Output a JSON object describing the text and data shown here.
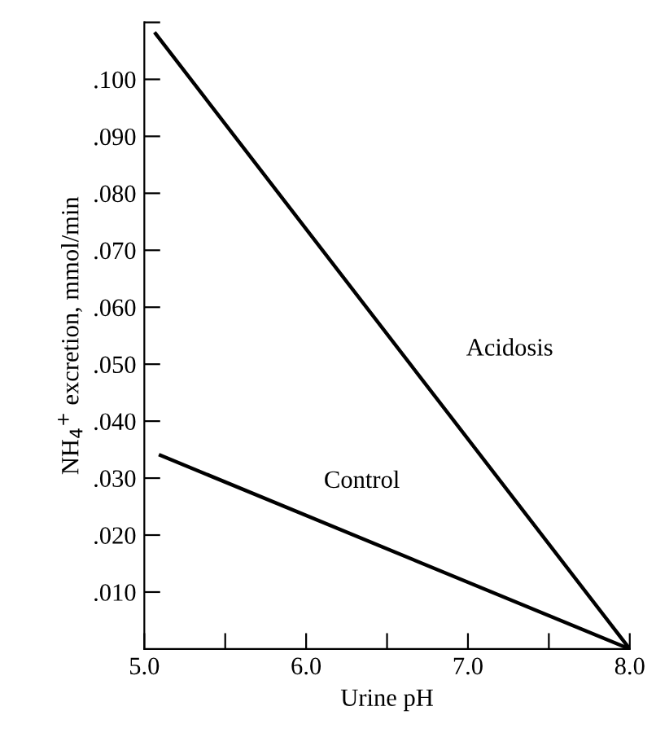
{
  "chart_data": {
    "type": "line",
    "xlabel": "Urine pH",
    "ylabel": "NH$_{4}$$^{+}$ excretion, mmol/min",
    "series": [
      {
        "name": "Acidosis",
        "color": "#000000",
        "x": [
          5.07,
          8.0
        ],
        "values": [
          0.108,
          0
        ]
      },
      {
        "name": "Control",
        "color": "#000000",
        "x": [
          5.1,
          8.0
        ],
        "values": [
          0.034,
          0
        ]
      }
    ],
    "xlim": [
      5.0,
      8.0
    ],
    "ylim": [
      0,
      0.11
    ],
    "xticks": [
      {
        "value": 5.0,
        "label": "5.0"
      },
      {
        "value": 5.5,
        "label": null
      },
      {
        "value": 6.0,
        "label": "6.0"
      },
      {
        "value": 6.5,
        "label": null
      },
      {
        "value": 7.0,
        "label": "7.0"
      },
      {
        "value": 7.5,
        "label": null
      },
      {
        "value": 8.0,
        "label": "8.0"
      }
    ],
    "yticks": [
      {
        "value": 0.01,
        "label": ".010"
      },
      {
        "value": 0.02,
        "label": ".020"
      },
      {
        "value": 0.03,
        "label": ".030"
      },
      {
        "value": 0.04,
        "label": ".040"
      },
      {
        "value": 0.05,
        "label": ".050"
      },
      {
        "value": 0.06,
        "label": ".060"
      },
      {
        "value": 0.07,
        "label": ".070"
      },
      {
        "value": 0.08,
        "label": ".080"
      },
      {
        "value": 0.09,
        "label": ".090"
      },
      {
        "value": 0.1,
        "label": ".100"
      },
      {
        "value": 0.11,
        "label": null
      }
    ],
    "grid": false,
    "legend": false,
    "marker": "none",
    "line_style": "solid"
  }
}
